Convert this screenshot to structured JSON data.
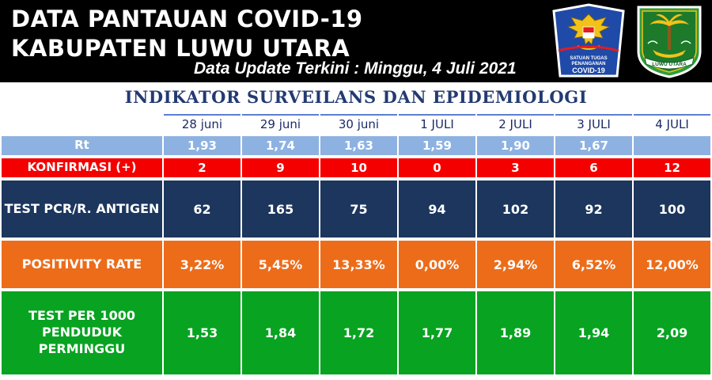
{
  "header": {
    "title_line1": "DATA PANTAUAN COVID-19",
    "title_line2": "KABUPATEN LUWU UTARA",
    "update_text": "Data Update Terkini : Minggu, 4 Juli 2021",
    "satgas_logo": {
      "icon": "garuda-emblem-icon",
      "text_line1": "SATUAN TUGAS",
      "text_line2": "PENANGANAN",
      "text_line3": "COVID-19",
      "colors": {
        "shield": "#1f4aa8",
        "accent": "#e31b23"
      }
    },
    "regency_logo": {
      "icon": "regency-crest-icon",
      "ribbon_text": "LUWU UTARA",
      "colors": {
        "border": "#0a8f3c",
        "fill": "#2e9d3a",
        "emblem": "#f2c21a"
      }
    }
  },
  "section_title": "INDIKATOR SURVEILANS DAN EPIDEMIOLOGI",
  "table": {
    "dates": [
      "28 juni",
      "29 juni",
      "30 juni",
      "1 JULI",
      "2 JULI",
      "3 JULI",
      "4 JULI"
    ],
    "rows": [
      {
        "label": "Rt",
        "values": [
          "1,93",
          "1,74",
          "1,63",
          "1,59",
          "1,90",
          "1,67",
          ""
        ]
      },
      {
        "label": "KONFIRMASI (+)",
        "values": [
          "2",
          "9",
          "10",
          "0",
          "3",
          "6",
          "12"
        ]
      },
      {
        "label": "TEST PCR/R. ANTIGEN",
        "values": [
          "62",
          "165",
          "75",
          "94",
          "102",
          "92",
          "100"
        ]
      },
      {
        "label": "POSITIVITY RATE",
        "values": [
          "3,22%",
          "5,45%",
          "13,33%",
          "0,00%",
          "2,94%",
          "6,52%",
          "12,00%"
        ]
      },
      {
        "label": "TEST PER 1000 PENDUDUK PERMINGGU",
        "values": [
          "1,53",
          "1,84",
          "1,72",
          "1,77",
          "1,89",
          "1,94",
          "2,09"
        ]
      }
    ],
    "row_colors": [
      "#8db2e2",
      "#f40000",
      "#1c365e",
      "#ec6c1a",
      "#08a321"
    ]
  }
}
